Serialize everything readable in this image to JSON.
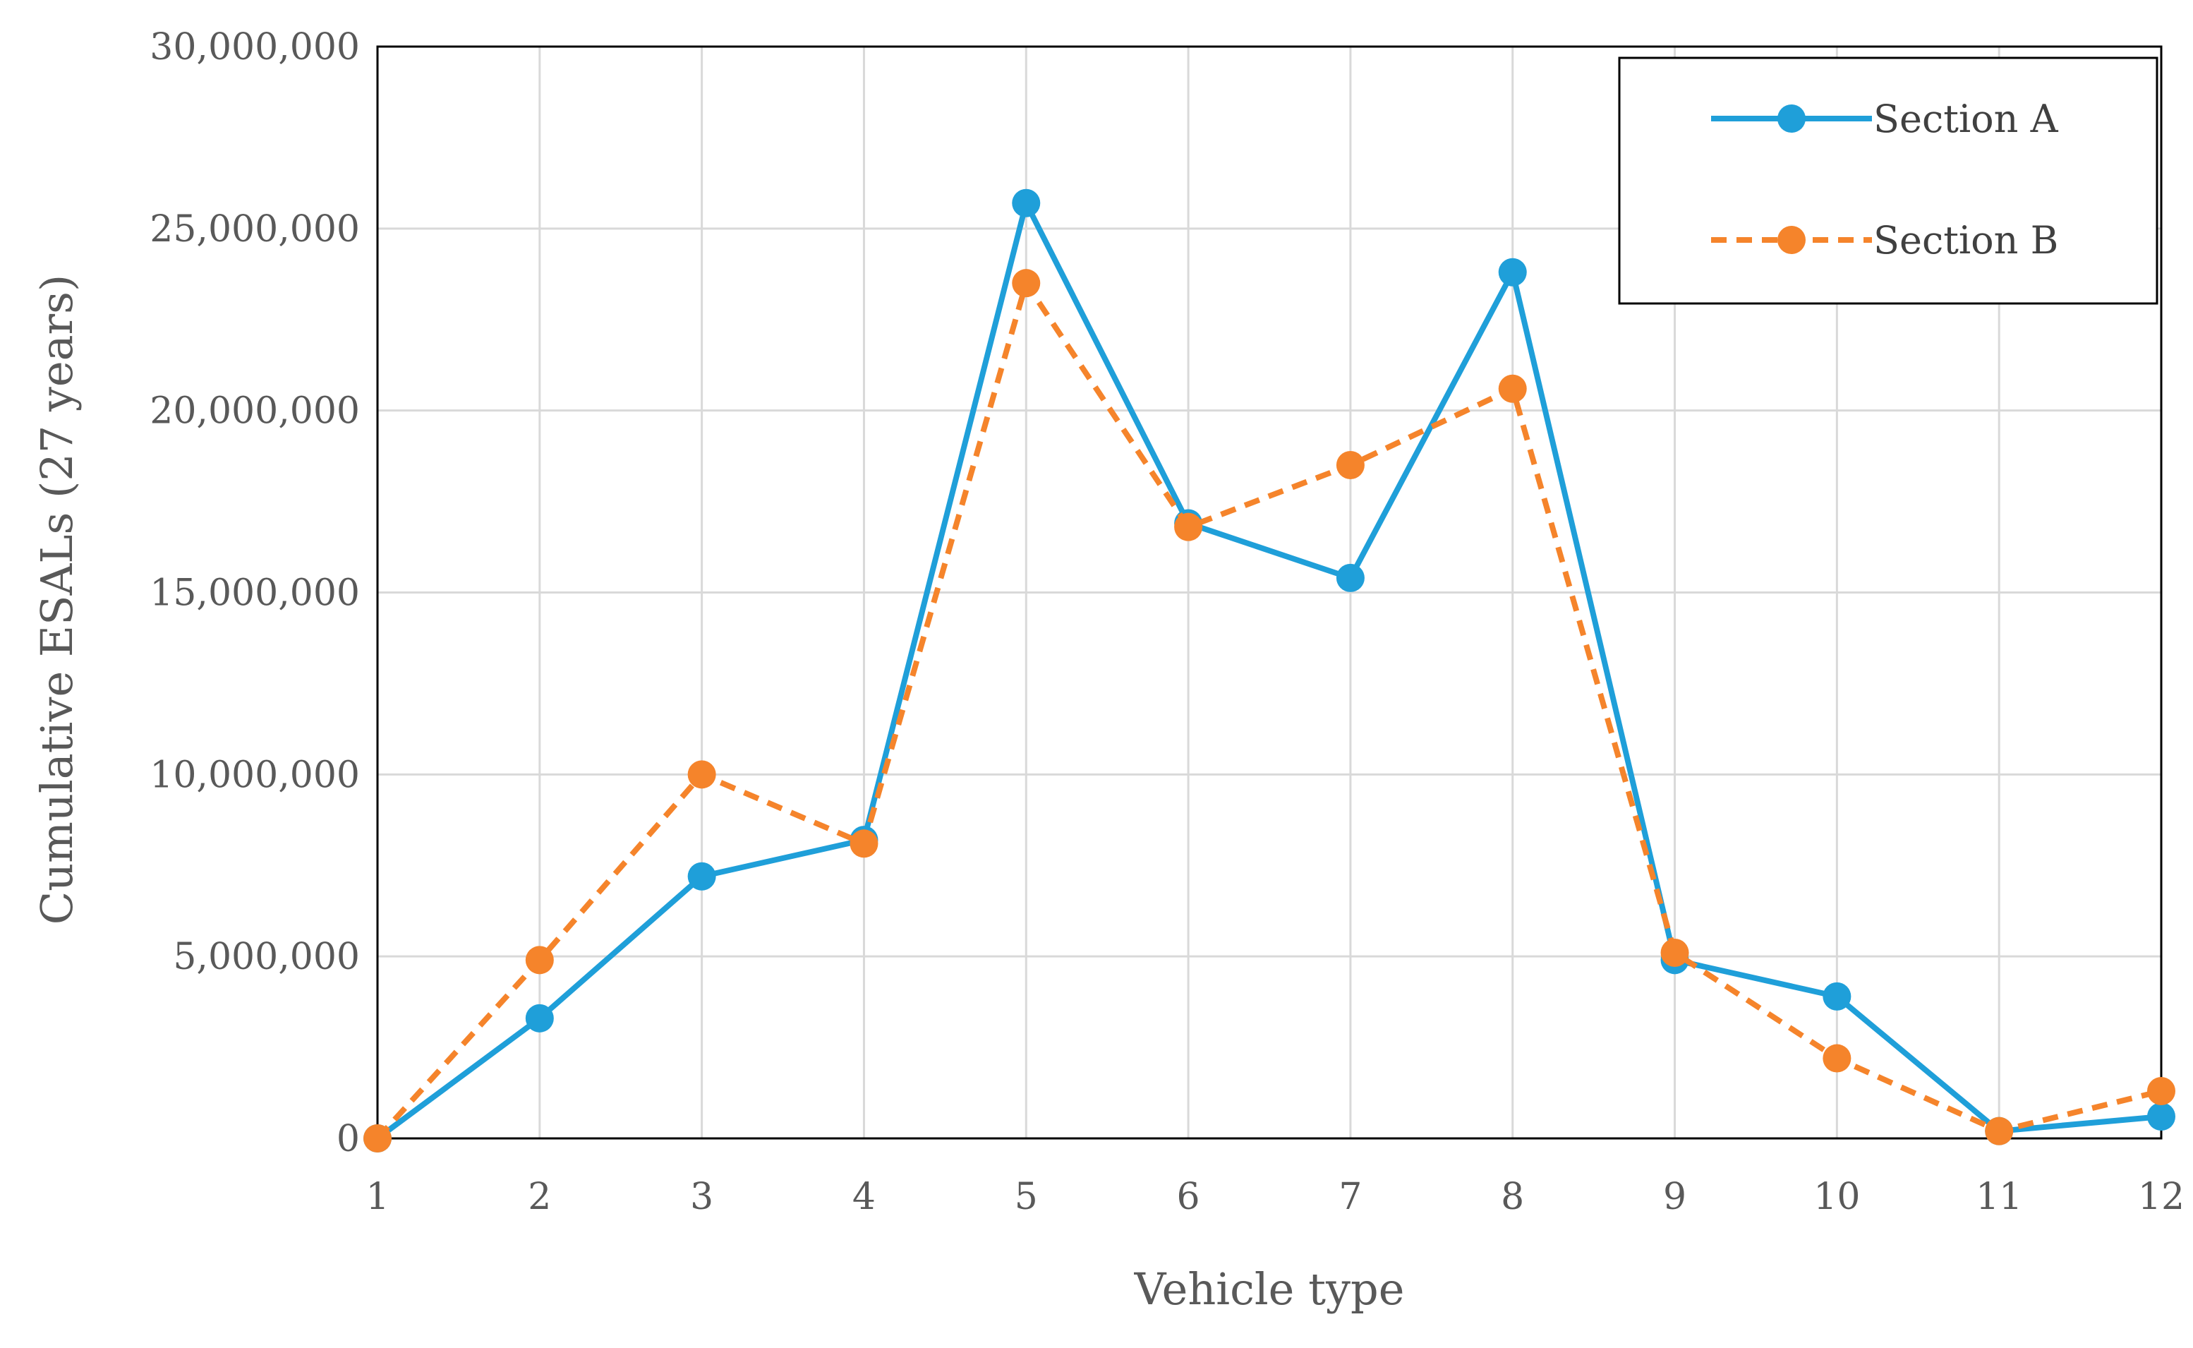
{
  "chart_data": {
    "type": "line",
    "title": "",
    "xlabel": "Vehicle type",
    "ylabel": "Cumulative ESALs (27 years)",
    "x": [
      1,
      2,
      3,
      4,
      5,
      6,
      7,
      8,
      9,
      10,
      11,
      12
    ],
    "x_tick_labels": [
      "1",
      "2",
      "3",
      "4",
      "5",
      "6",
      "7",
      "8",
      "9",
      "10",
      "11",
      "12"
    ],
    "y_tick_labels": [
      "0",
      "5,000,000",
      "10,000,000",
      "15,000,000",
      "20,000,000",
      "25,000,000",
      "30,000,000"
    ],
    "y_ticks": [
      0,
      5000000,
      10000000,
      15000000,
      20000000,
      25000000,
      30000000
    ],
    "xlim": [
      1,
      12
    ],
    "ylim": [
      0,
      30000000
    ],
    "grid": true,
    "legend_position": "top-right",
    "series": [
      {
        "name": "Section A",
        "color": "#1f9fd9",
        "line_style": "solid",
        "marker": "circle",
        "values": [
          0,
          3300000,
          7200000,
          8200000,
          25700000,
          16900000,
          15400000,
          23800000,
          4900000,
          3900000,
          200000,
          600000
        ]
      },
      {
        "name": "Section B",
        "color": "#f5842b",
        "line_style": "dashed",
        "marker": "circle",
        "values": [
          0,
          4900000,
          10000000,
          8100000,
          23500000,
          16800000,
          18500000,
          20600000,
          5100000,
          2200000,
          200000,
          1300000
        ]
      }
    ]
  }
}
